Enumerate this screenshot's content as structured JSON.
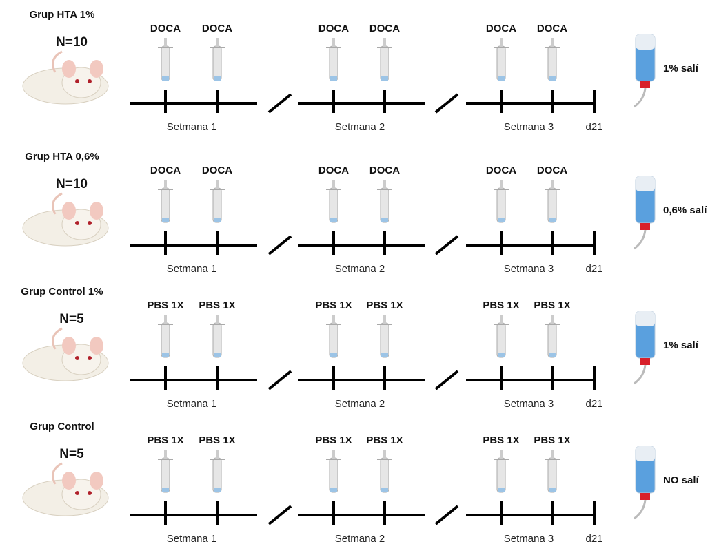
{
  "groups": [
    {
      "title": "Grup HTA 1%",
      "n": "N=10",
      "injections": [
        "DOCA",
        "DOCA",
        "DOCA",
        "DOCA",
        "DOCA",
        "DOCA"
      ],
      "weeks": [
        "Setmana 1",
        "Setmana 2",
        "Setmana 3"
      ],
      "end": "d21",
      "water": "1% salí"
    },
    {
      "title": "Grup HTA 0,6%",
      "n": "N=10",
      "injections": [
        "DOCA",
        "DOCA",
        "DOCA",
        "DOCA",
        "DOCA",
        "DOCA"
      ],
      "weeks": [
        "Setmana 1",
        "Setmana 2",
        "Setmana 3"
      ],
      "end": "d21",
      "water": "0,6% salí"
    },
    {
      "title": "Grup Control 1%",
      "n": "N=5",
      "injections": [
        "PBS 1X",
        "PBS 1X",
        "PBS 1X",
        "PBS 1X",
        "PBS 1X",
        "PBS 1X"
      ],
      "weeks": [
        "Setmana 1",
        "Setmana 2",
        "Setmana 3"
      ],
      "end": "d21",
      "water": "1% salí"
    },
    {
      "title": "Grup Control",
      "n": "N=5",
      "injections": [
        "PBS 1X",
        "PBS 1X",
        "PBS 1X",
        "PBS 1X",
        "PBS 1X",
        "PBS 1X"
      ],
      "weeks": [
        "Setmana 1",
        "Setmana 2",
        "Setmana 3"
      ],
      "end": "d21",
      "water": "NO salí"
    }
  ]
}
